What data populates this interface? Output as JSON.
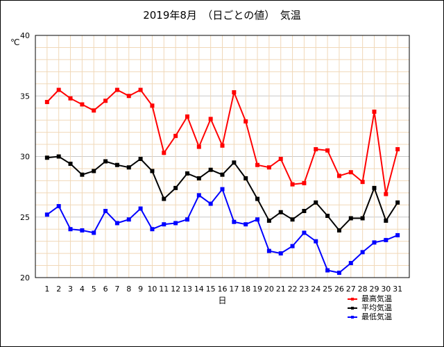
{
  "chart_data": {
    "type": "line",
    "title": "2019年8月　（日ごとの値）　気温",
    "xlabel": "日",
    "ylabel": "℃",
    "ylim": [
      20,
      40
    ],
    "y_ticks": [
      20,
      25,
      30,
      35,
      40
    ],
    "grid": true,
    "legend_position": "bottom-right",
    "categories": [
      "1",
      "2",
      "3",
      "4",
      "5",
      "6",
      "7",
      "8",
      "9",
      "10",
      "11",
      "12",
      "13",
      "14",
      "15",
      "16",
      "17",
      "18",
      "19",
      "20",
      "21",
      "22",
      "23",
      "24",
      "25",
      "26",
      "27",
      "28",
      "29",
      "30",
      "31"
    ],
    "series": [
      {
        "name": "最高気温",
        "color": "#ff0000",
        "values": [
          34.5,
          35.5,
          34.8,
          34.3,
          33.8,
          34.6,
          35.5,
          35.0,
          35.5,
          34.2,
          30.3,
          31.7,
          33.3,
          30.8,
          33.1,
          30.9,
          35.3,
          32.9,
          29.3,
          29.1,
          29.8,
          27.7,
          27.8,
          30.6,
          30.5,
          28.4,
          28.7,
          27.9,
          33.7,
          26.9,
          30.6
        ]
      },
      {
        "name": "平均気温",
        "color": "#000000",
        "values": [
          29.9,
          30.0,
          29.4,
          28.5,
          28.8,
          29.6,
          29.3,
          29.1,
          29.8,
          28.8,
          26.5,
          27.4,
          28.6,
          28.2,
          28.9,
          28.5,
          29.5,
          28.2,
          26.5,
          24.7,
          25.4,
          24.8,
          25.5,
          26.2,
          25.1,
          23.9,
          24.9,
          24.9,
          27.4,
          24.7,
          26.2
        ]
      },
      {
        "name": "最低気温",
        "color": "#0000ff",
        "values": [
          25.2,
          25.9,
          24.0,
          23.9,
          23.7,
          25.5,
          24.5,
          24.8,
          25.7,
          24.0,
          24.4,
          24.5,
          24.8,
          26.8,
          26.1,
          27.3,
          24.6,
          24.4,
          24.8,
          22.2,
          22.0,
          22.6,
          23.7,
          23.0,
          20.6,
          20.4,
          21.2,
          22.1,
          22.9,
          23.1,
          23.5
        ]
      }
    ]
  }
}
